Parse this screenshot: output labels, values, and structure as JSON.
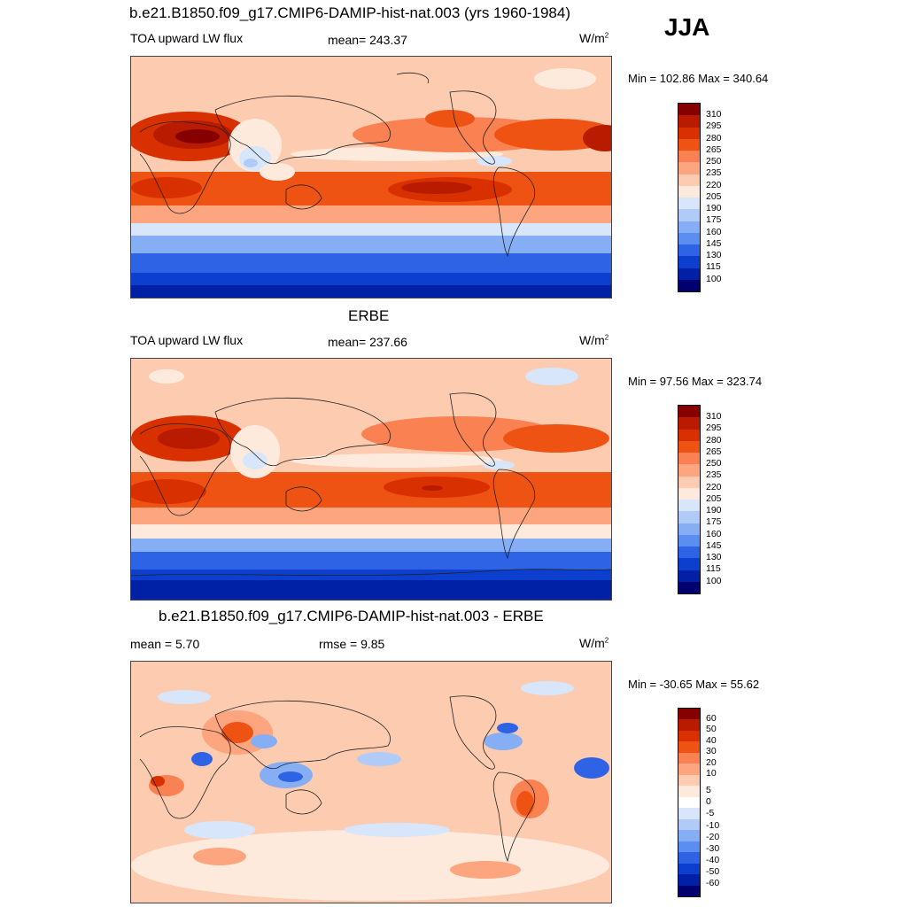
{
  "season": "JJA",
  "units_base": "W/m",
  "units_sup": "2",
  "panels": [
    {
      "title": "b.e21.B1850.f09_g17.CMIP6-DAMIP-hist-nat.003 (yrs 1960-1984)",
      "left_label": "TOA upward LW flux",
      "center_label": "mean= 243.37",
      "minmax": "Min = 102.86 Max = 340.64",
      "colorbar_colors": [
        "#870000",
        "#b81b00",
        "#d93000",
        "#ee5314",
        "#fa8152",
        "#fca57f",
        "#fdcbb0",
        "#feeadd",
        "#d7e6fb",
        "#b1cbf8",
        "#85aef5",
        "#5a8ef1",
        "#2f63e6",
        "#0d3fcf",
        "#0020a6",
        "#00006e"
      ],
      "colorbar_labels": [
        "310",
        "295",
        "280",
        "265",
        "250",
        "235",
        "220",
        "205",
        "190",
        "175",
        "160",
        "145",
        "130",
        "115",
        "100"
      ]
    },
    {
      "title": "ERBE",
      "left_label": "TOA upward LW flux",
      "center_label": "mean= 237.66",
      "minmax": "Min =  97.56 Max = 323.74",
      "colorbar_colors": [
        "#870000",
        "#b81b00",
        "#d93000",
        "#ee5314",
        "#fa8152",
        "#fca57f",
        "#fdcbb0",
        "#feeadd",
        "#d7e6fb",
        "#b1cbf8",
        "#85aef5",
        "#5a8ef1",
        "#2f63e6",
        "#0d3fcf",
        "#0020a6",
        "#00006e"
      ],
      "colorbar_labels": [
        "310",
        "295",
        "280",
        "265",
        "250",
        "235",
        "220",
        "205",
        "190",
        "175",
        "160",
        "145",
        "130",
        "115",
        "100"
      ]
    },
    {
      "title": "b.e21.B1850.f09_g17.CMIP6-DAMIP-hist-nat.003 - ERBE",
      "left_label": "mean =   5.70",
      "center_label": "rmse =   9.85",
      "minmax": "Min = -30.65 Max =  55.62",
      "colorbar_colors": [
        "#870000",
        "#b81b00",
        "#d93000",
        "#ee5314",
        "#fa8152",
        "#fca57f",
        "#fdcbb0",
        "#feeadd",
        "#ffffff",
        "#d7e6fb",
        "#b1cbf8",
        "#85aef5",
        "#5a8ef1",
        "#2f63e6",
        "#0d3fcf",
        "#0020a6",
        "#00006e"
      ],
      "colorbar_labels": [
        "60",
        "50",
        "40",
        "30",
        "20",
        "10",
        "5",
        "0",
        "-5",
        "-10",
        "-20",
        "-30",
        "-40",
        "-50",
        "-60"
      ]
    }
  ]
}
